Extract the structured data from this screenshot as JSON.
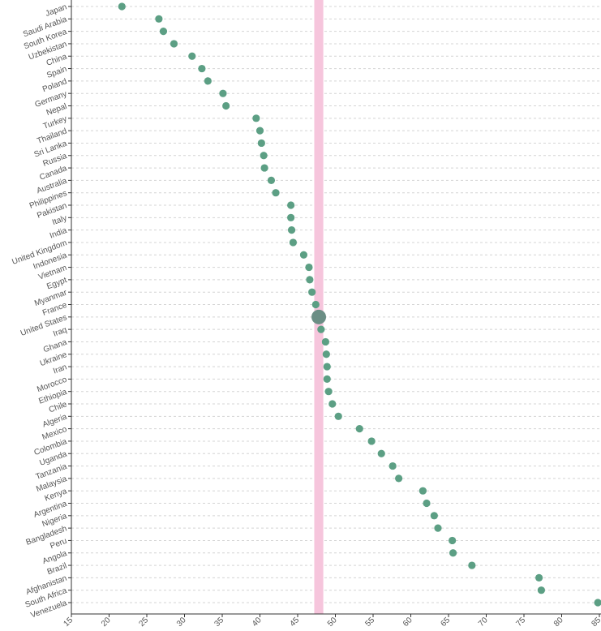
{
  "chart_data": {
    "type": "scatter",
    "title": "",
    "xlabel": "",
    "ylabel": "",
    "xlim": [
      15,
      85
    ],
    "x_ticks": [
      "15",
      "20",
      "25",
      "30",
      "35",
      "40",
      "45",
      "50",
      "55",
      "60",
      "65",
      "70",
      "75",
      "80",
      "85"
    ],
    "grid": "horizontal dashed",
    "highlight_band": {
      "from": 47.2,
      "to": 48.4,
      "color": "#f6c5dc"
    },
    "point_color": "#5c9f84",
    "highlight_point_color": "#6b8e85",
    "points": [
      {
        "category": "Japan",
        "value": 21.7
      },
      {
        "category": "Saudi Arabia",
        "value": 26.6
      },
      {
        "category": "South Korea",
        "value": 27.2
      },
      {
        "category": "Uzbekistan",
        "value": 28.6
      },
      {
        "category": "China",
        "value": 31.0
      },
      {
        "category": "Spain",
        "value": 32.3
      },
      {
        "category": "Poland",
        "value": 33.1
      },
      {
        "category": "Germany",
        "value": 35.1
      },
      {
        "category": "Nepal",
        "value": 35.5
      },
      {
        "category": "Turkey",
        "value": 39.5
      },
      {
        "category": "Thailand",
        "value": 40.0
      },
      {
        "category": "Sri Lanka",
        "value": 40.2
      },
      {
        "category": "Russia",
        "value": 40.5
      },
      {
        "category": "Canada",
        "value": 40.6
      },
      {
        "category": "Australia",
        "value": 41.5
      },
      {
        "category": "Philippines",
        "value": 42.1
      },
      {
        "category": "Pakistan",
        "value": 44.1
      },
      {
        "category": "Italy",
        "value": 44.1
      },
      {
        "category": "India",
        "value": 44.2
      },
      {
        "category": "United Kingdom",
        "value": 44.4
      },
      {
        "category": "Indonesia",
        "value": 45.8
      },
      {
        "category": "Vietnam",
        "value": 46.5
      },
      {
        "category": "Egypt",
        "value": 46.6
      },
      {
        "category": "Myanmar",
        "value": 46.9
      },
      {
        "category": "France",
        "value": 47.4
      },
      {
        "category": "United States",
        "value": 47.8,
        "highlight": true
      },
      {
        "category": "Iraq",
        "value": 48.1
      },
      {
        "category": "Ghana",
        "value": 48.7
      },
      {
        "category": "Ukraine",
        "value": 48.8
      },
      {
        "category": "Iran",
        "value": 48.9
      },
      {
        "category": "Morocco",
        "value": 48.9
      },
      {
        "category": "Ethiopia",
        "value": 49.1
      },
      {
        "category": "Chile",
        "value": 49.6
      },
      {
        "category": "Algeria",
        "value": 50.4
      },
      {
        "category": "Mexico",
        "value": 53.2
      },
      {
        "category": "Colombia",
        "value": 54.8
      },
      {
        "category": "Uganda",
        "value": 56.1
      },
      {
        "category": "Tanzania",
        "value": 57.6
      },
      {
        "category": "Malaysia",
        "value": 58.4
      },
      {
        "category": "Kenya",
        "value": 61.6
      },
      {
        "category": "Argentina",
        "value": 62.1
      },
      {
        "category": "Nigeria",
        "value": 63.1
      },
      {
        "category": "Bangladesh",
        "value": 63.6
      },
      {
        "category": "Peru",
        "value": 65.5
      },
      {
        "category": "Angola",
        "value": 65.6
      },
      {
        "category": "Brazil",
        "value": 68.1
      },
      {
        "category": "Afghanistan",
        "value": 77.0
      },
      {
        "category": "South Africa",
        "value": 77.3
      },
      {
        "category": "Venezuela",
        "value": 84.8
      }
    ]
  }
}
